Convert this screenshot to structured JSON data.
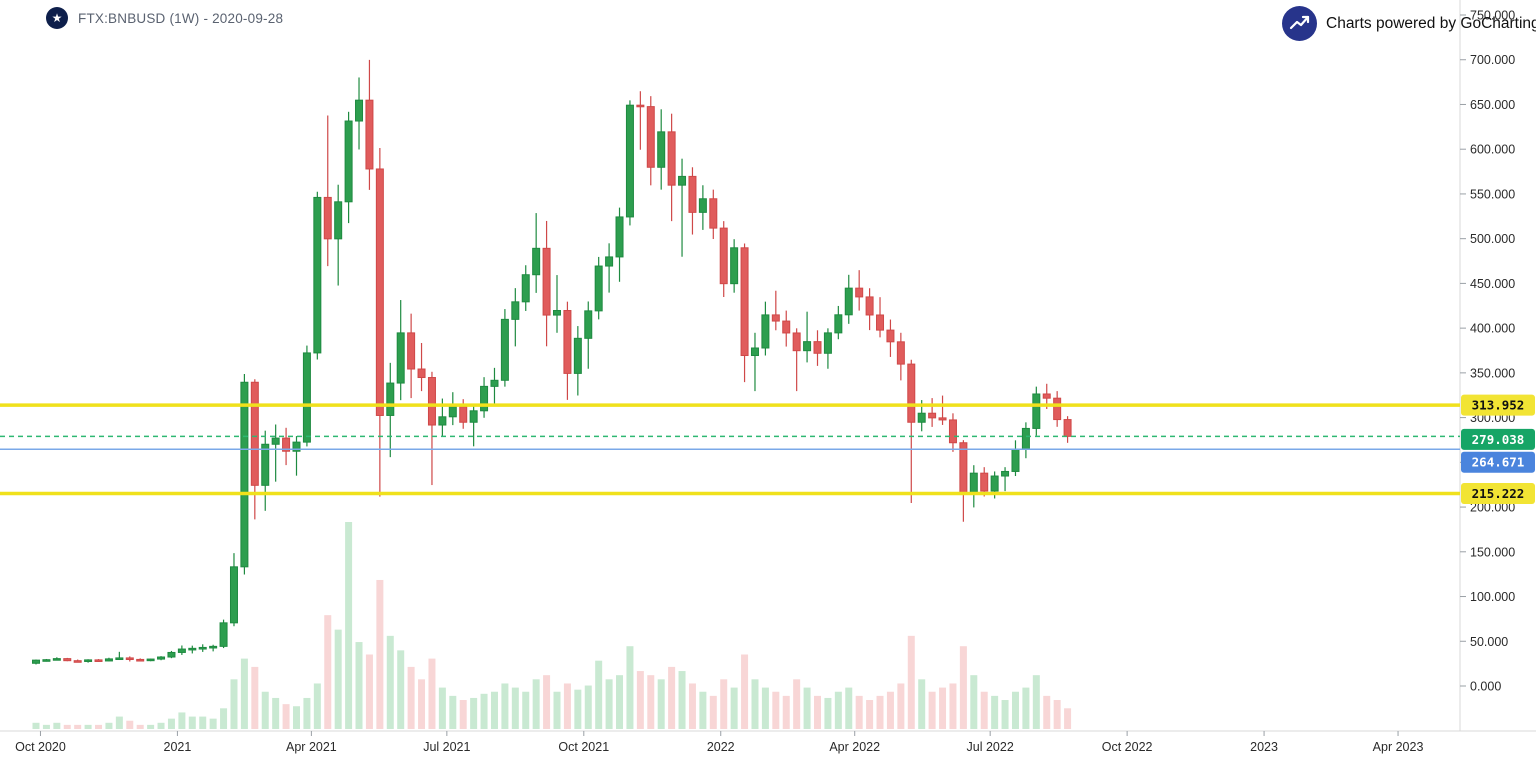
{
  "header": {
    "logo_glyph": "★",
    "symbol_text": "FTX:BNBUSD (1W) - 2020-09-28",
    "powered_by_text": "Charts powered by GoCharting"
  },
  "colors": {
    "up": "#2d9e4f",
    "up_border": "#1e8a40",
    "down": "#e05c5c",
    "down_border": "#cf4848",
    "vol_up": "#c9e9d2",
    "vol_down": "#f8d6d6",
    "axis_text": "#2a2a2a",
    "axis_line": "#d8d8d8",
    "tick_mark": "#9aa0a6",
    "symbol_text": "#5a6270",
    "logo_bg": "#0e1f4b",
    "powered_icon_bg": "#27348b"
  },
  "chart_data": {
    "type": "candlestick",
    "symbol": "FTX:BNBUSD",
    "interval": "1W",
    "chart_date": "2020-09-28",
    "title": "FTX:BNBUSD (1W) - 2020-09-28",
    "grid": false,
    "legend_position": "none",
    "y_axis": {
      "side": "right",
      "min": 0,
      "max": 750,
      "step": 50,
      "tick_labels": [
        "0.000",
        "50.000",
        "100.000",
        "150.000",
        "200.000",
        "250.000",
        "300.000",
        "350.000",
        "400.000",
        "450.000",
        "500.000",
        "550.000",
        "600.000",
        "650.000",
        "700.000",
        "750.000"
      ]
    },
    "x_axis": {
      "labels": [
        {
          "text": "Oct 2020",
          "date": "2020-10-01"
        },
        {
          "text": "2021",
          "date": "2021-01-01"
        },
        {
          "text": "Apr 2021",
          "date": "2021-04-01"
        },
        {
          "text": "Jul 2021",
          "date": "2021-07-01"
        },
        {
          "text": "Oct 2021",
          "date": "2021-10-01"
        },
        {
          "text": "2022",
          "date": "2022-01-01"
        },
        {
          "text": "Apr 2022",
          "date": "2022-04-01"
        },
        {
          "text": "Jul 2022",
          "date": "2022-07-01"
        },
        {
          "text": "Oct 2022",
          "date": "2022-10-01"
        },
        {
          "text": "2023",
          "date": "2023-01-01"
        },
        {
          "text": "Apr 2023",
          "date": "2023-04-01"
        }
      ]
    },
    "horizontal_lines": [
      {
        "name": "resistance-price-line",
        "value": 313.952,
        "label": "313.952",
        "style": "solid",
        "width": 3.5,
        "color": "#f0e11c",
        "label_bg": "#f2e434",
        "label_color": "#111111",
        "label_offset": 0
      },
      {
        "name": "last-price-line",
        "value": 279.038,
        "label": "279.038",
        "style": "dashed",
        "width": 1.5,
        "color": "#2eb872",
        "label_bg": "#16a566",
        "label_color": "#ffffff",
        "label_offset": 3
      },
      {
        "name": "alert-price-line",
        "value": 264.671,
        "label": "264.671",
        "style": "solid",
        "width": 1.5,
        "color": "#7aa8e8",
        "label_bg": "#4a84dd",
        "label_color": "#ffffff",
        "label_offset": 13
      },
      {
        "name": "support-price-line",
        "value": 215.222,
        "label": "215.222",
        "style": "solid",
        "width": 3.5,
        "color": "#f0e11c",
        "label_bg": "#f2e434",
        "label_color": "#111111",
        "label_offset": 0
      }
    ],
    "columns": [
      "date",
      "open",
      "high",
      "low",
      "close",
      "volume_rel"
    ],
    "candles": [
      [
        "2020-09-28",
        25.4,
        29.6,
        24.1,
        28.9,
        3
      ],
      [
        "2020-10-05",
        28.9,
        30.2,
        27.3,
        29.4,
        2
      ],
      [
        "2020-10-12",
        29.4,
        32.1,
        28.5,
        30.6,
        3
      ],
      [
        "2020-10-19",
        30.6,
        31.4,
        27.7,
        28.3,
        2
      ],
      [
        "2020-10-26",
        28.3,
        29.6,
        26.7,
        28.2,
        2
      ],
      [
        "2020-11-02",
        28.2,
        29.9,
        26.1,
        29.2,
        2
      ],
      [
        "2020-11-09",
        29.2,
        30.1,
        27.1,
        28.0,
        2
      ],
      [
        "2020-11-16",
        28.0,
        31.6,
        27.5,
        30.3,
        3
      ],
      [
        "2020-11-23",
        30.3,
        38.2,
        29.1,
        31.4,
        6
      ],
      [
        "2020-11-30",
        31.4,
        33.1,
        27.4,
        29.7,
        4
      ],
      [
        "2020-12-07",
        29.7,
        30.9,
        27.8,
        28.5,
        2
      ],
      [
        "2020-12-14",
        28.5,
        30.6,
        27.7,
        30.1,
        2
      ],
      [
        "2020-12-21",
        30.1,
        33.4,
        28.8,
        32.4,
        3
      ],
      [
        "2020-12-28",
        32.4,
        39.2,
        31.1,
        37.5,
        5
      ],
      [
        "2021-01-04",
        37.5,
        45.3,
        34.7,
        41.3,
        8
      ],
      [
        "2021-01-11",
        41.3,
        45.1,
        36.4,
        42.1,
        6
      ],
      [
        "2021-01-18",
        42.1,
        46.6,
        38.1,
        43.1,
        6
      ],
      [
        "2021-01-25",
        43.1,
        46.1,
        38.7,
        44.3,
        5
      ],
      [
        "2021-02-01",
        44.3,
        74.2,
        42.4,
        70.6,
        10
      ],
      [
        "2021-02-08",
        70.6,
        148.5,
        66.8,
        133.2,
        24
      ],
      [
        "2021-02-15",
        133.2,
        348.7,
        124.6,
        339.5,
        34
      ],
      [
        "2021-02-22",
        339.5,
        342.8,
        186.2,
        224.3,
        30
      ],
      [
        "2021-03-01",
        224.3,
        285.4,
        195.8,
        270.2,
        18
      ],
      [
        "2021-03-08",
        270.2,
        292.3,
        228.4,
        277.1,
        15
      ],
      [
        "2021-03-15",
        277.1,
        288.6,
        246.9,
        262.4,
        12
      ],
      [
        "2021-03-22",
        262.4,
        279.3,
        235.1,
        272.6,
        11
      ],
      [
        "2021-03-29",
        272.6,
        380.5,
        267.8,
        372.3,
        15
      ],
      [
        "2021-04-05",
        372.3,
        552.4,
        364.9,
        546.1,
        22
      ],
      [
        "2021-04-12",
        546.1,
        637.6,
        469.3,
        499.8,
        55
      ],
      [
        "2021-04-19",
        499.8,
        560.3,
        447.6,
        541.2,
        48
      ],
      [
        "2021-04-26",
        541.2,
        641.8,
        517.4,
        631.5,
        100
      ],
      [
        "2021-05-03",
        631.5,
        680.2,
        599.7,
        654.8,
        42
      ],
      [
        "2021-05-10",
        654.8,
        699.8,
        554.6,
        577.9,
        36
      ],
      [
        "2021-05-17",
        577.9,
        601.3,
        211.7,
        302.4,
        72
      ],
      [
        "2021-05-24",
        302.4,
        361.2,
        255.8,
        338.6,
        45
      ],
      [
        "2021-05-31",
        338.6,
        431.4,
        319.5,
        394.7,
        38
      ],
      [
        "2021-06-07",
        394.7,
        416.2,
        321.8,
        354.3,
        30
      ],
      [
        "2021-06-14",
        354.3,
        383.4,
        329.6,
        344.8,
        24
      ],
      [
        "2021-06-21",
        344.8,
        351.2,
        224.6,
        291.7,
        34
      ],
      [
        "2021-06-28",
        291.7,
        321.3,
        279.4,
        300.9,
        20
      ],
      [
        "2021-07-05",
        300.9,
        328.4,
        291.6,
        312.2,
        16
      ],
      [
        "2021-07-12",
        312.2,
        320.6,
        287.5,
        294.8,
        14
      ],
      [
        "2021-07-19",
        294.8,
        312.4,
        267.9,
        307.6,
        15
      ],
      [
        "2021-07-26",
        307.6,
        345.2,
        299.8,
        334.9,
        17
      ],
      [
        "2021-08-02",
        334.9,
        355.6,
        315.8,
        341.7,
        18
      ],
      [
        "2021-08-09",
        341.7,
        421.3,
        334.6,
        409.8,
        22
      ],
      [
        "2021-08-16",
        409.8,
        444.7,
        379.6,
        429.4,
        20
      ],
      [
        "2021-08-23",
        429.4,
        470.3,
        419.2,
        459.7,
        18
      ],
      [
        "2021-08-30",
        459.7,
        528.6,
        439.4,
        489.2,
        24
      ],
      [
        "2021-09-06",
        489.2,
        519.8,
        379.7,
        414.6,
        26
      ],
      [
        "2021-09-13",
        414.6,
        459.3,
        394.8,
        419.7,
        18
      ],
      [
        "2021-09-20",
        419.7,
        429.6,
        319.8,
        349.4,
        22
      ],
      [
        "2021-09-27",
        349.4,
        402.3,
        324.7,
        388.6,
        19
      ],
      [
        "2021-10-04",
        388.6,
        429.8,
        354.6,
        419.3,
        21
      ],
      [
        "2021-10-11",
        419.3,
        479.6,
        409.8,
        469.4,
        33
      ],
      [
        "2021-10-18",
        469.4,
        494.8,
        439.7,
        479.6,
        24
      ],
      [
        "2021-10-25",
        479.6,
        534.7,
        451.8,
        524.3,
        26
      ],
      [
        "2021-11-01",
        524.3,
        654.6,
        514.8,
        649.2,
        40
      ],
      [
        "2021-11-08",
        649.2,
        664.8,
        599.4,
        647.6,
        28
      ],
      [
        "2021-11-15",
        647.6,
        659.3,
        559.6,
        579.8,
        26
      ],
      [
        "2021-11-22",
        579.8,
        644.6,
        554.8,
        619.4,
        24
      ],
      [
        "2021-11-29",
        619.4,
        639.7,
        519.6,
        559.8,
        30
      ],
      [
        "2021-12-06",
        559.8,
        589.4,
        479.8,
        569.6,
        28
      ],
      [
        "2021-12-13",
        569.6,
        579.8,
        504.6,
        529.4,
        22
      ],
      [
        "2021-12-20",
        529.4,
        559.7,
        509.8,
        544.6,
        18
      ],
      [
        "2021-12-27",
        544.6,
        554.8,
        499.6,
        511.8,
        16
      ],
      [
        "2022-01-03",
        511.8,
        519.6,
        434.8,
        449.7,
        24
      ],
      [
        "2022-01-10",
        449.7,
        499.4,
        439.6,
        489.8,
        20
      ],
      [
        "2022-01-17",
        489.8,
        494.6,
        339.7,
        369.4,
        36
      ],
      [
        "2022-01-24",
        369.4,
        394.8,
        329.6,
        377.8,
        24
      ],
      [
        "2022-01-31",
        377.8,
        429.6,
        369.4,
        414.8,
        20
      ],
      [
        "2022-02-07",
        414.8,
        441.8,
        397.6,
        407.9,
        18
      ],
      [
        "2022-02-14",
        407.9,
        419.6,
        379.4,
        394.6,
        16
      ],
      [
        "2022-02-21",
        394.6,
        399.8,
        329.6,
        374.8,
        24
      ],
      [
        "2022-02-28",
        374.8,
        418.4,
        361.7,
        384.9,
        20
      ],
      [
        "2022-03-07",
        384.9,
        397.6,
        357.8,
        371.9,
        16
      ],
      [
        "2022-03-14",
        371.9,
        399.8,
        354.6,
        394.7,
        15
      ],
      [
        "2022-03-21",
        394.7,
        424.8,
        387.6,
        414.9,
        18
      ],
      [
        "2022-03-28",
        414.9,
        459.6,
        404.8,
        444.7,
        20
      ],
      [
        "2022-04-04",
        444.7,
        464.8,
        419.6,
        434.9,
        16
      ],
      [
        "2022-04-11",
        434.9,
        444.6,
        397.8,
        414.7,
        14
      ],
      [
        "2022-04-18",
        414.7,
        434.6,
        389.7,
        397.8,
        16
      ],
      [
        "2022-04-25",
        397.8,
        409.6,
        367.8,
        384.7,
        18
      ],
      [
        "2022-05-02",
        384.7,
        394.8,
        341.6,
        359.8,
        22
      ],
      [
        "2022-05-09",
        359.8,
        364.7,
        204.6,
        294.8,
        45
      ],
      [
        "2022-05-16",
        294.8,
        319.6,
        284.7,
        304.9,
        24
      ],
      [
        "2022-05-23",
        304.9,
        321.8,
        289.6,
        299.7,
        18
      ],
      [
        "2022-05-30",
        299.7,
        324.6,
        291.8,
        297.4,
        20
      ],
      [
        "2022-06-06",
        297.4,
        304.8,
        261.7,
        271.9,
        22
      ],
      [
        "2022-06-13",
        271.9,
        274.8,
        183.6,
        214.7,
        40
      ],
      [
        "2022-06-20",
        214.7,
        246.8,
        199.6,
        237.9,
        26
      ],
      [
        "2022-06-27",
        237.9,
        244.6,
        211.8,
        217.9,
        18
      ],
      [
        "2022-07-04",
        217.9,
        239.8,
        209.6,
        234.7,
        16
      ],
      [
        "2022-07-11",
        234.7,
        244.6,
        217.8,
        239.8,
        14
      ],
      [
        "2022-07-18",
        239.8,
        274.6,
        234.7,
        264.8,
        18
      ],
      [
        "2022-07-25",
        264.8,
        294.7,
        254.6,
        287.9,
        20
      ],
      [
        "2022-08-01",
        287.9,
        334.6,
        279.8,
        326.4,
        26
      ],
      [
        "2022-08-08",
        326.4,
        337.8,
        309.6,
        321.7,
        16
      ],
      [
        "2022-08-15",
        321.7,
        329.6,
        289.7,
        297.8,
        14
      ],
      [
        "2022-08-22",
        297.8,
        301.6,
        271.8,
        279.038,
        10
      ]
    ]
  }
}
